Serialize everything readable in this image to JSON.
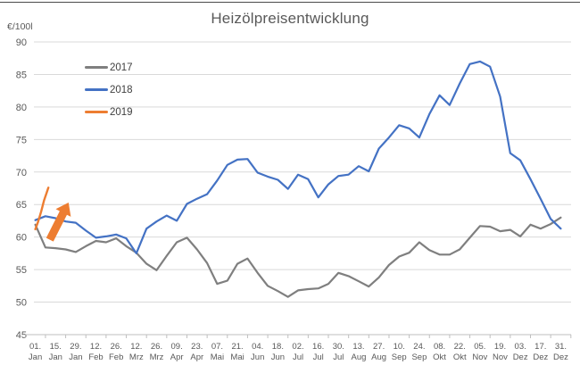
{
  "chart_data": {
    "type": "line",
    "title": "Heizölpreisentwicklung",
    "y_axis": {
      "unit_label": "€/100l",
      "min": 45,
      "max": 90,
      "step": 5,
      "ticks": [
        45,
        50,
        55,
        60,
        65,
        70,
        75,
        80,
        85,
        90
      ]
    },
    "x_axis": {
      "span_days": 364,
      "tick_labels": [
        {
          "day": 0,
          "top": "01.",
          "bottom": "Jan"
        },
        {
          "day": 14,
          "top": "15.",
          "bottom": "Jan"
        },
        {
          "day": 28,
          "top": "29.",
          "bottom": "Jan"
        },
        {
          "day": 42,
          "top": "12.",
          "bottom": "Feb"
        },
        {
          "day": 56,
          "top": "26.",
          "bottom": "Feb"
        },
        {
          "day": 70,
          "top": "12.",
          "bottom": "Mrz"
        },
        {
          "day": 84,
          "top": "26.",
          "bottom": "Mrz"
        },
        {
          "day": 98,
          "top": "09.",
          "bottom": "Apr"
        },
        {
          "day": 112,
          "top": "23.",
          "bottom": "Apr"
        },
        {
          "day": 126,
          "top": "07.",
          "bottom": "Mai"
        },
        {
          "day": 140,
          "top": "21.",
          "bottom": "Mai"
        },
        {
          "day": 154,
          "top": "04.",
          "bottom": "Jun"
        },
        {
          "day": 168,
          "top": "18.",
          "bottom": "Jun"
        },
        {
          "day": 182,
          "top": "02.",
          "bottom": "Jul"
        },
        {
          "day": 196,
          "top": "16.",
          "bottom": "Jul"
        },
        {
          "day": 210,
          "top": "30.",
          "bottom": "Jul"
        },
        {
          "day": 224,
          "top": "13.",
          "bottom": "Aug"
        },
        {
          "day": 238,
          "top": "27.",
          "bottom": "Aug"
        },
        {
          "day": 252,
          "top": "10.",
          "bottom": "Sep"
        },
        {
          "day": 266,
          "top": "24.",
          "bottom": "Sep"
        },
        {
          "day": 280,
          "top": "08.",
          "bottom": "Okt"
        },
        {
          "day": 294,
          "top": "22.",
          "bottom": "Okt"
        },
        {
          "day": 308,
          "top": "05.",
          "bottom": "Nov"
        },
        {
          "day": 322,
          "top": "19.",
          "bottom": "Nov"
        },
        {
          "day": 336,
          "top": "03.",
          "bottom": "Dez"
        },
        {
          "day": 350,
          "top": "17.",
          "bottom": "Dez"
        },
        {
          "day": 364,
          "top": "31.",
          "bottom": "Dez"
        }
      ]
    },
    "series": [
      {
        "name": "2017",
        "color": "#7F7F7F",
        "days": [
          0,
          7,
          14,
          21,
          28,
          35,
          42,
          49,
          56,
          63,
          70,
          77,
          84,
          91,
          98,
          105,
          112,
          119,
          126,
          133,
          140,
          147,
          154,
          161,
          168,
          175,
          182,
          189,
          196,
          203,
          210,
          217,
          224,
          231,
          238,
          245,
          252,
          259,
          266,
          273,
          280,
          287,
          294,
          301,
          308,
          315,
          322,
          329,
          336,
          343,
          350,
          357,
          364
        ],
        "values": [
          61.9,
          58.4,
          58.3,
          58.1,
          57.7,
          58.6,
          59.4,
          59.2,
          59.8,
          58.6,
          57.6,
          55.9,
          54.9,
          57.1,
          59.2,
          59.9,
          58.1,
          56.0,
          52.8,
          53.3,
          55.9,
          56.7,
          54.5,
          52.5,
          51.7,
          50.8,
          51.8,
          52.0,
          52.1,
          52.8,
          54.5,
          54.0,
          53.2,
          52.4,
          53.8,
          55.7,
          57.0,
          57.6,
          59.2,
          58.0,
          57.3,
          57.3,
          58.1,
          59.9,
          61.7,
          61.6,
          60.9,
          61.1,
          60.1,
          61.9,
          61.3,
          62.0,
          63.0
        ]
      },
      {
        "name": "2018",
        "color": "#4472C4",
        "days": [
          0,
          7,
          14,
          21,
          28,
          35,
          42,
          49,
          56,
          63,
          70,
          77,
          84,
          91,
          98,
          105,
          112,
          119,
          126,
          133,
          140,
          147,
          154,
          161,
          168,
          175,
          182,
          189,
          196,
          203,
          210,
          217,
          224,
          231,
          238,
          245,
          252,
          259,
          266,
          273,
          280,
          287,
          294,
          301,
          308,
          315,
          322,
          329,
          336,
          343,
          350,
          357,
          364
        ],
        "values": [
          62.6,
          63.2,
          62.9,
          62.4,
          62.2,
          61.0,
          59.9,
          60.1,
          60.4,
          59.8,
          57.5,
          61.3,
          62.4,
          63.3,
          62.5,
          65.1,
          65.9,
          66.6,
          68.7,
          71.1,
          71.9,
          72.0,
          69.9,
          69.3,
          68.8,
          67.4,
          69.6,
          68.9,
          66.1,
          68.1,
          69.4,
          69.6,
          70.9,
          70.1,
          73.6,
          75.3,
          77.2,
          76.7,
          75.3,
          78.9,
          81.8,
          80.3,
          83.6,
          86.6,
          87.0,
          86.2,
          81.6,
          72.9,
          71.8,
          68.9,
          65.9,
          62.8,
          61.3
        ]
      },
      {
        "name": "2019",
        "color": "#ED7D31",
        "days": [
          0,
          2,
          4,
          6,
          8,
          9
        ],
        "values": [
          61.2,
          62.4,
          63.9,
          65.6,
          66.9,
          67.6
        ]
      }
    ],
    "annotation": {
      "type": "block-arrow",
      "color": "#ED7D31",
      "from": {
        "day": 10,
        "value": 59.6
      },
      "to": {
        "day": 23,
        "value": 65.3
      }
    },
    "grid": true,
    "legend_position": "inside-top-left",
    "gridline_color": "#D9D9D9",
    "axis_line_color": "#BFBFBF",
    "text_color": "#595959"
  }
}
